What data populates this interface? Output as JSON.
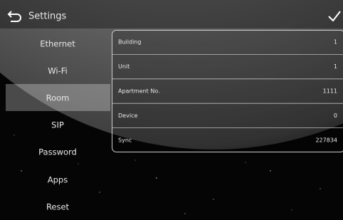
{
  "header": {
    "title": "Settings"
  },
  "menu": [
    "Ethernet",
    "Wi-Fi",
    "Room",
    "SIP",
    "Password",
    "Apps",
    "Reset"
  ],
  "fields": [
    {
      "label": "Building",
      "value": "1"
    },
    {
      "label": "Unit",
      "value": "1"
    },
    {
      "label": "Apartment No.",
      "value": "1111"
    },
    {
      "label": "Device",
      "value": "0"
    },
    {
      "label": "Sync",
      "value": "227834"
    }
  ]
}
